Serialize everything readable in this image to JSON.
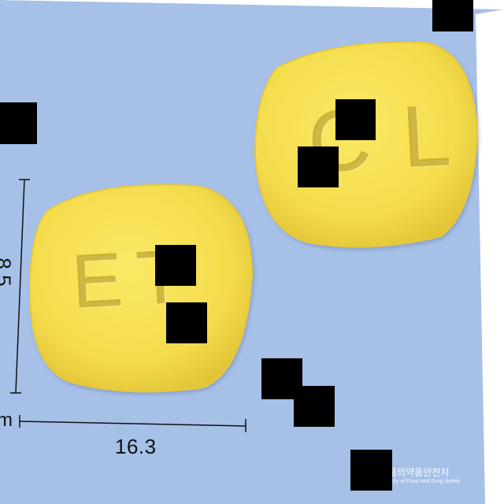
{
  "photo": {
    "background_color": "#a6c0e8",
    "pill_color": "#f5df4f",
    "pill_edge_color": "#e6c93a"
  },
  "pill_front": {
    "imprint": "ET"
  },
  "pill_back": {
    "imprint": "CL"
  },
  "dimensions": {
    "height_value": "8.5",
    "width_value": "16.3",
    "unit": "m"
  },
  "watermark": {
    "korean": "식품의약품안전처",
    "english": "Ministry of Food and Drug Safety"
  }
}
